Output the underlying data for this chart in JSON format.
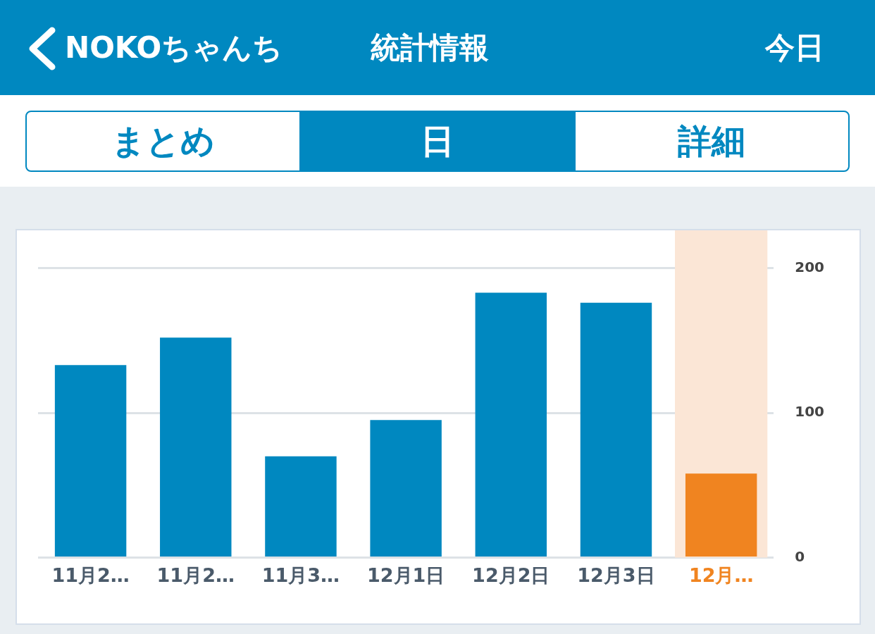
{
  "chart_data": [
    {
      "type": "other",
      "title": "統計情報",
      "annotations": [
        "NOKOちゃんち",
        "今日",
        "まとめ",
        "日",
        "詳細"
      ]
    },
    {
      "type": "bar",
      "categories": [
        "11月2…",
        "11月2…",
        "11月3…",
        "12月1日",
        "12月2日",
        "12月3日",
        "12月…"
      ],
      "values": [
        133,
        152,
        70,
        95,
        183,
        176,
        58
      ],
      "colors": [
        "#0088c0",
        "#0088c0",
        "#0088c0",
        "#0088c0",
        "#0088c0",
        "#0088c0",
        "#f08420"
      ],
      "ylim": [
        0,
        226
      ],
      "yticks": [
        0,
        100,
        200
      ],
      "grid": "y",
      "bands": [
        {
          "axis": "x",
          "from": "12月…",
          "to": "12月…",
          "color": "#fbe6d6"
        }
      ]
    }
  ]
}
